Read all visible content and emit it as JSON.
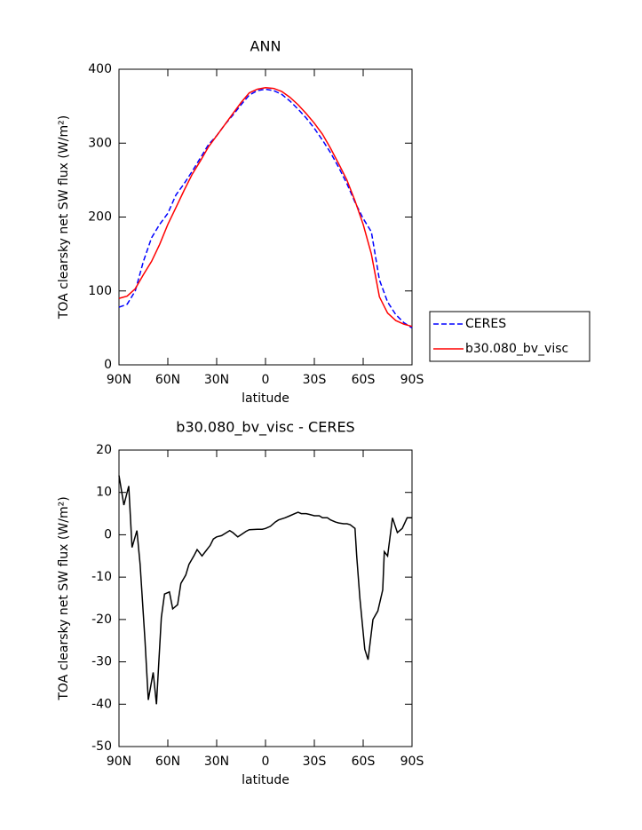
{
  "chart_data": [
    {
      "type": "line",
      "title": "ANN",
      "xlabel": "latitude",
      "ylabel": "TOA clearsky net SW flux (W/m²)",
      "x": [
        90,
        85,
        80,
        75,
        70,
        65,
        60,
        55,
        50,
        45,
        40,
        35,
        30,
        25,
        20,
        15,
        10,
        5,
        0,
        -5,
        -10,
        -15,
        -20,
        -25,
        -30,
        -35,
        -40,
        -45,
        -50,
        -55,
        -60,
        -65,
        -70,
        -75,
        -80,
        -85,
        -90
      ],
      "series": [
        {
          "name": "CERES",
          "color": "#0000ff",
          "dashed": true,
          "values": [
            78,
            82,
            100,
            140,
            172,
            190,
            205,
            230,
            245,
            262,
            280,
            298,
            310,
            325,
            338,
            352,
            365,
            371,
            373,
            371,
            366,
            357,
            346,
            334,
            320,
            304,
            287,
            267,
            245,
            220,
            198,
            180,
            115,
            85,
            68,
            57,
            50
          ]
        },
        {
          "name": "b30.080_bv_visc",
          "color": "#ff0000",
          "dashed": false,
          "values": [
            90,
            93,
            103,
            122,
            140,
            163,
            190,
            213,
            236,
            258,
            276,
            295,
            310,
            325,
            340,
            355,
            368,
            373,
            375,
            374,
            370,
            362,
            352,
            340,
            327,
            312,
            293,
            272,
            250,
            222,
            190,
            150,
            92,
            70,
            60,
            55,
            52
          ]
        }
      ],
      "xlim": [
        90,
        -90
      ],
      "xticks": [
        {
          "value": 90,
          "label": "90N"
        },
        {
          "value": 60,
          "label": "60N"
        },
        {
          "value": 30,
          "label": "30N"
        },
        0,
        {
          "value": -30,
          "label": "30S"
        },
        {
          "value": -60,
          "label": "60S"
        },
        {
          "value": -90,
          "label": "90S"
        }
      ],
      "ylim": [
        0,
        400
      ],
      "yticks": [
        0,
        100,
        200,
        300,
        400
      ],
      "legend": "right"
    },
    {
      "type": "line",
      "title": "b30.080_bv_visc - CERES",
      "xlabel": "latitude",
      "ylabel": "TOA clearsky net SW flux (W/m²)",
      "x": [
        90,
        87,
        84,
        82,
        79,
        77,
        74,
        72,
        69,
        67,
        64,
        62,
        59,
        57,
        54,
        52,
        49,
        47,
        44,
        42,
        39,
        37,
        34,
        32,
        30,
        27,
        24,
        22,
        20,
        17,
        15,
        12,
        10,
        5,
        2,
        0,
        -3,
        -6,
        -8,
        -12,
        -15,
        -18,
        -20,
        -22,
        -25,
        -27,
        -30,
        -33,
        -35,
        -38,
        -40,
        -43,
        -45,
        -48,
        -50,
        -52,
        -55,
        -56,
        -58,
        -61,
        -63,
        -66,
        -69,
        -72,
        -73,
        -75,
        -78,
        -81,
        -84,
        -87,
        -90
      ],
      "series": [
        {
          "name": "b30.080_bv_visc - CERES",
          "color": "#000000",
          "dashed": false,
          "values": [
            14,
            7,
            11.5,
            -3,
            1,
            -7,
            -25,
            -39,
            -32.5,
            -40,
            -19.5,
            -14,
            -13.5,
            -17.5,
            -16.5,
            -11.5,
            -9.5,
            -7,
            -5,
            -3.5,
            -5,
            -4,
            -2.5,
            -1,
            -0.5,
            -0.2,
            0.5,
            1,
            0.5,
            -0.5,
            0,
            0.8,
            1.2,
            1.3,
            1.3,
            1.5,
            2,
            3,
            3.5,
            4,
            4.5,
            5,
            5.3,
            5,
            5,
            4.8,
            4.5,
            4.5,
            4,
            4,
            3.5,
            3,
            2.8,
            2.6,
            2.6,
            2.4,
            1.5,
            -5,
            -15,
            -27,
            -29.5,
            -20,
            -18,
            -13,
            -4,
            -5,
            4,
            0.5,
            1.5,
            4,
            4
          ]
        }
      ],
      "xlim": [
        90,
        -90
      ],
      "xticks": [
        {
          "value": 90,
          "label": "90N"
        },
        {
          "value": 60,
          "label": "60N"
        },
        {
          "value": 30,
          "label": "30N"
        },
        0,
        {
          "value": -30,
          "label": "30S"
        },
        {
          "value": -60,
          "label": "60S"
        },
        {
          "value": -90,
          "label": "90S"
        }
      ],
      "ylim": [
        -50,
        20
      ],
      "yticks": [
        -50,
        -40,
        -30,
        -20,
        -10,
        0,
        10,
        20
      ]
    }
  ]
}
